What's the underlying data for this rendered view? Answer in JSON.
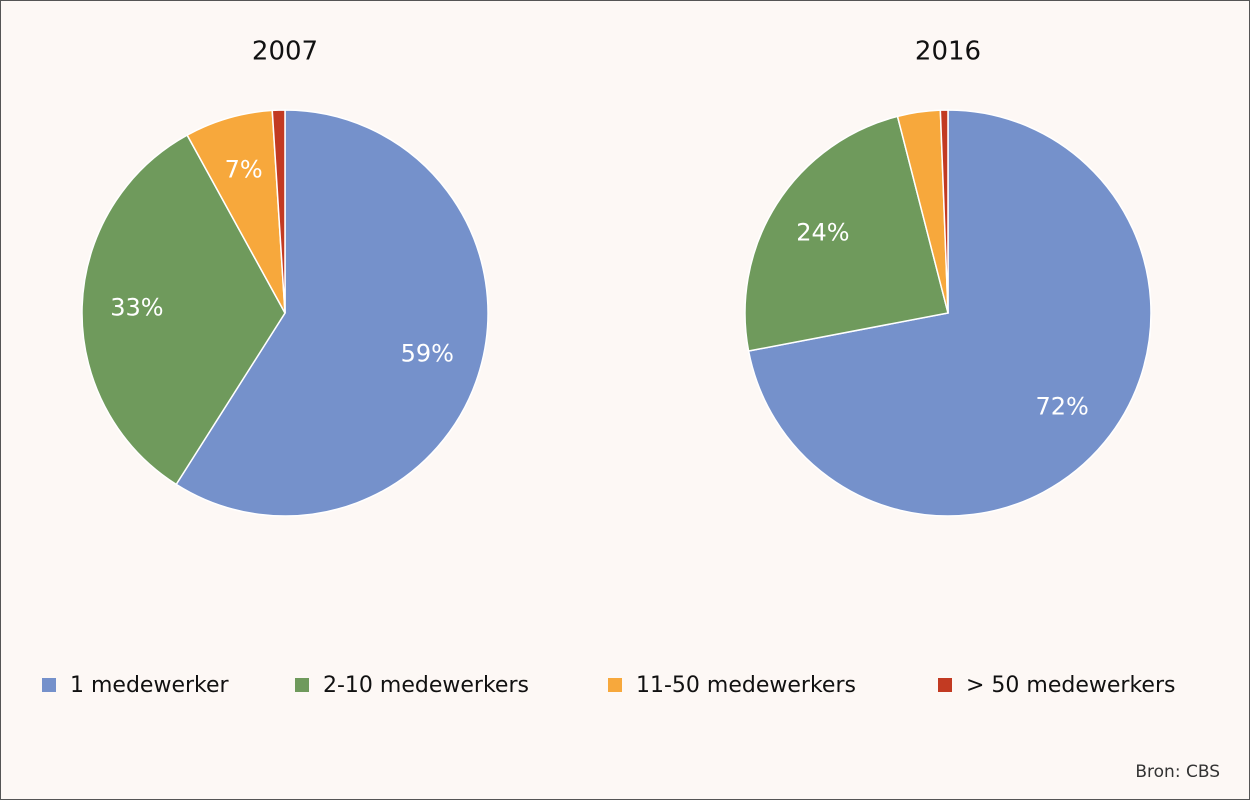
{
  "chart_data": [
    {
      "type": "pie",
      "title": "2007",
      "categories": [
        "1 medewerker",
        "2-10 medewerkers",
        "11-50 medewerkers",
        "> 50 medewerkers"
      ],
      "values": [
        59,
        33,
        7,
        1
      ],
      "value_labels": [
        "59%",
        "33%",
        "7%",
        null
      ],
      "colors": [
        "#7591cb",
        "#6f9a5c",
        "#f7a83c",
        "#c23a22"
      ]
    },
    {
      "type": "pie",
      "title": "2016",
      "categories": [
        "1 medewerker",
        "2-10 medewerkers",
        "11-50 medewerkers",
        "> 50 medewerkers"
      ],
      "values": [
        72,
        24,
        3.4,
        0.6
      ],
      "value_labels": [
        "72%",
        "24%",
        null,
        null
      ],
      "colors": [
        "#7591cb",
        "#6f9a5c",
        "#f7a83c",
        "#c23a22"
      ]
    }
  ],
  "source": "Bron: CBS"
}
